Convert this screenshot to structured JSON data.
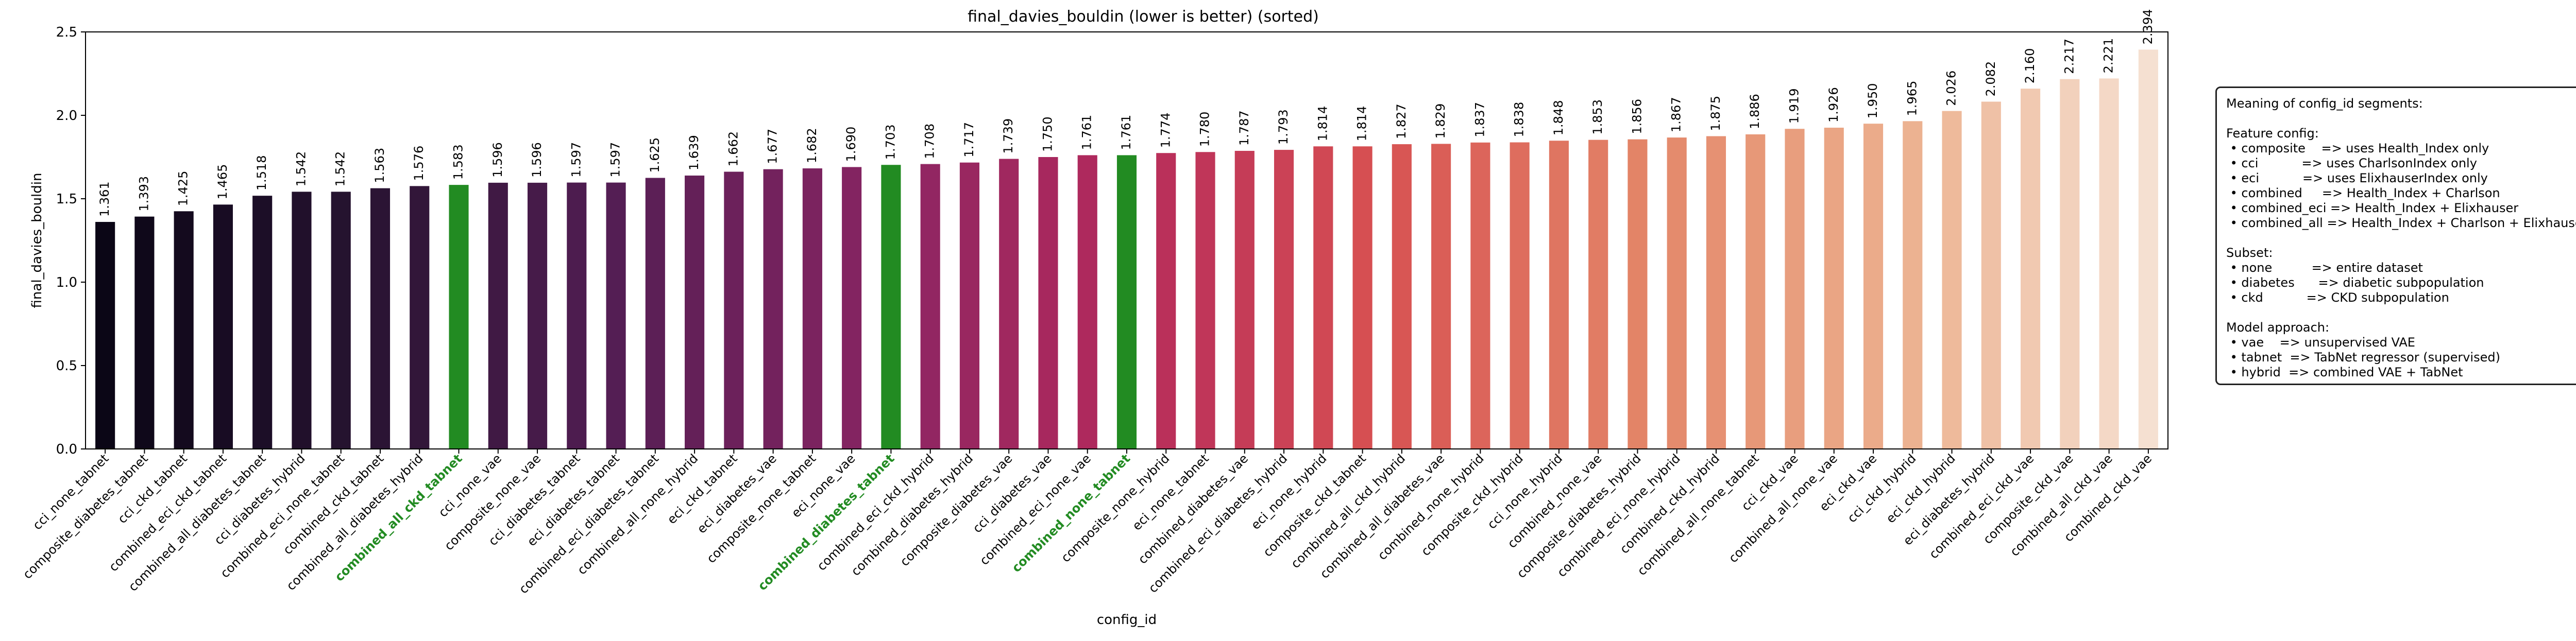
{
  "chart_data": {
    "type": "bar",
    "title": "final_davies_bouldin (lower is better) (sorted)",
    "xlabel": "config_id",
    "ylabel": "final_davies_bouldin",
    "ylim": [
      0,
      2.5
    ],
    "yticks": [
      "0.0",
      "0.5",
      "1.0",
      "1.5",
      "2.0",
      "2.5"
    ],
    "grid": false,
    "legend_placement": "right, outside plot",
    "highlight_color": "#228b22",
    "highlighted": [
      "combined_all_ckd_tabnet",
      "combined_diabetes_tabnet",
      "combined_none_tabnet"
    ],
    "categories": [
      "cci_none_tabnet",
      "composite_diabetes_tabnet",
      "cci_ckd_tabnet",
      "combined_eci_ckd_tabnet",
      "combined_all_diabetes_tabnet",
      "cci_diabetes_hybrid",
      "combined_eci_none_tabnet",
      "combined_ckd_tabnet",
      "combined_all_diabetes_hybrid",
      "combined_all_ckd_tabnet",
      "cci_none_vae",
      "composite_none_vae",
      "cci_diabetes_tabnet",
      "eci_diabetes_tabnet",
      "combined_eci_diabetes_tabnet",
      "combined_all_none_hybrid",
      "eci_ckd_tabnet",
      "eci_diabetes_vae",
      "composite_none_tabnet",
      "eci_none_vae",
      "combined_diabetes_tabnet",
      "combined_eci_ckd_hybrid",
      "combined_diabetes_hybrid",
      "composite_diabetes_vae",
      "cci_diabetes_vae",
      "combined_eci_none_vae",
      "combined_none_tabnet",
      "composite_none_hybrid",
      "eci_none_tabnet",
      "combined_diabetes_vae",
      "combined_eci_diabetes_hybrid",
      "eci_none_hybrid",
      "composite_ckd_tabnet",
      "combined_all_ckd_hybrid",
      "combined_all_diabetes_vae",
      "combined_none_hybrid",
      "composite_ckd_hybrid",
      "cci_none_hybrid",
      "combined_none_vae",
      "composite_diabetes_hybrid",
      "combined_eci_none_hybrid",
      "combined_ckd_hybrid",
      "combined_all_none_tabnet",
      "cci_ckd_vae",
      "combined_all_none_vae",
      "eci_ckd_vae",
      "cci_ckd_hybrid",
      "eci_ckd_hybrid",
      "eci_diabetes_hybrid",
      "combined_eci_ckd_vae",
      "composite_ckd_vae",
      "combined_all_ckd_vae",
      "combined_ckd_vae"
    ],
    "values": [
      1.361,
      1.393,
      1.425,
      1.465,
      1.518,
      1.542,
      1.542,
      1.563,
      1.576,
      1.583,
      1.596,
      1.596,
      1.597,
      1.597,
      1.625,
      1.639,
      1.662,
      1.677,
      1.682,
      1.69,
      1.703,
      1.708,
      1.717,
      1.739,
      1.75,
      1.761,
      1.761,
      1.774,
      1.78,
      1.787,
      1.793,
      1.814,
      1.814,
      1.827,
      1.829,
      1.837,
      1.838,
      1.848,
      1.853,
      1.856,
      1.867,
      1.875,
      1.886,
      1.919,
      1.926,
      1.95,
      1.965,
      2.026,
      2.082,
      2.16,
      2.217,
      2.221,
      2.394
    ],
    "value_labels": [
      "1.361",
      "1.393",
      "1.425",
      "1.465",
      "1.518",
      "1.542",
      "1.542",
      "1.563",
      "1.576",
      "1.583",
      "1.596",
      "1.596",
      "1.597",
      "1.597",
      "1.625",
      "1.639",
      "1.662",
      "1.677",
      "1.682",
      "1.690",
      "1.703",
      "1.708",
      "1.717",
      "1.739",
      "1.750",
      "1.761",
      "1.761",
      "1.774",
      "1.780",
      "1.787",
      "1.793",
      "1.814",
      "1.814",
      "1.827",
      "1.829",
      "1.837",
      "1.838",
      "1.848",
      "1.853",
      "1.856",
      "1.867",
      "1.875",
      "1.886",
      "1.919",
      "1.926",
      "1.950",
      "1.965",
      "2.026",
      "2.082",
      "2.160",
      "2.217",
      "2.221",
      "2.394"
    ]
  },
  "legend": {
    "lines": [
      "Meaning of config_id segments:",
      "",
      "Feature config:",
      " • composite    => uses Health_Index only",
      " • cci           => uses CharlsonIndex only",
      " • eci           => uses ElixhauserIndex only",
      " • combined     => Health_Index + Charlson",
      " • combined_eci => Health_Index + Elixhauser",
      " • combined_all => Health_Index + Charlson + Elixhauser",
      "",
      "Subset:",
      " • none          => entire dataset",
      " • diabetes      => diabetic subpopulation",
      " • ckd           => CKD subpopulation",
      "",
      "Model approach:",
      " • vae    => unsupervised VAE",
      " • tabnet  => TabNet regressor (supervised)",
      " • hybrid  => combined VAE + TabNet"
    ]
  }
}
